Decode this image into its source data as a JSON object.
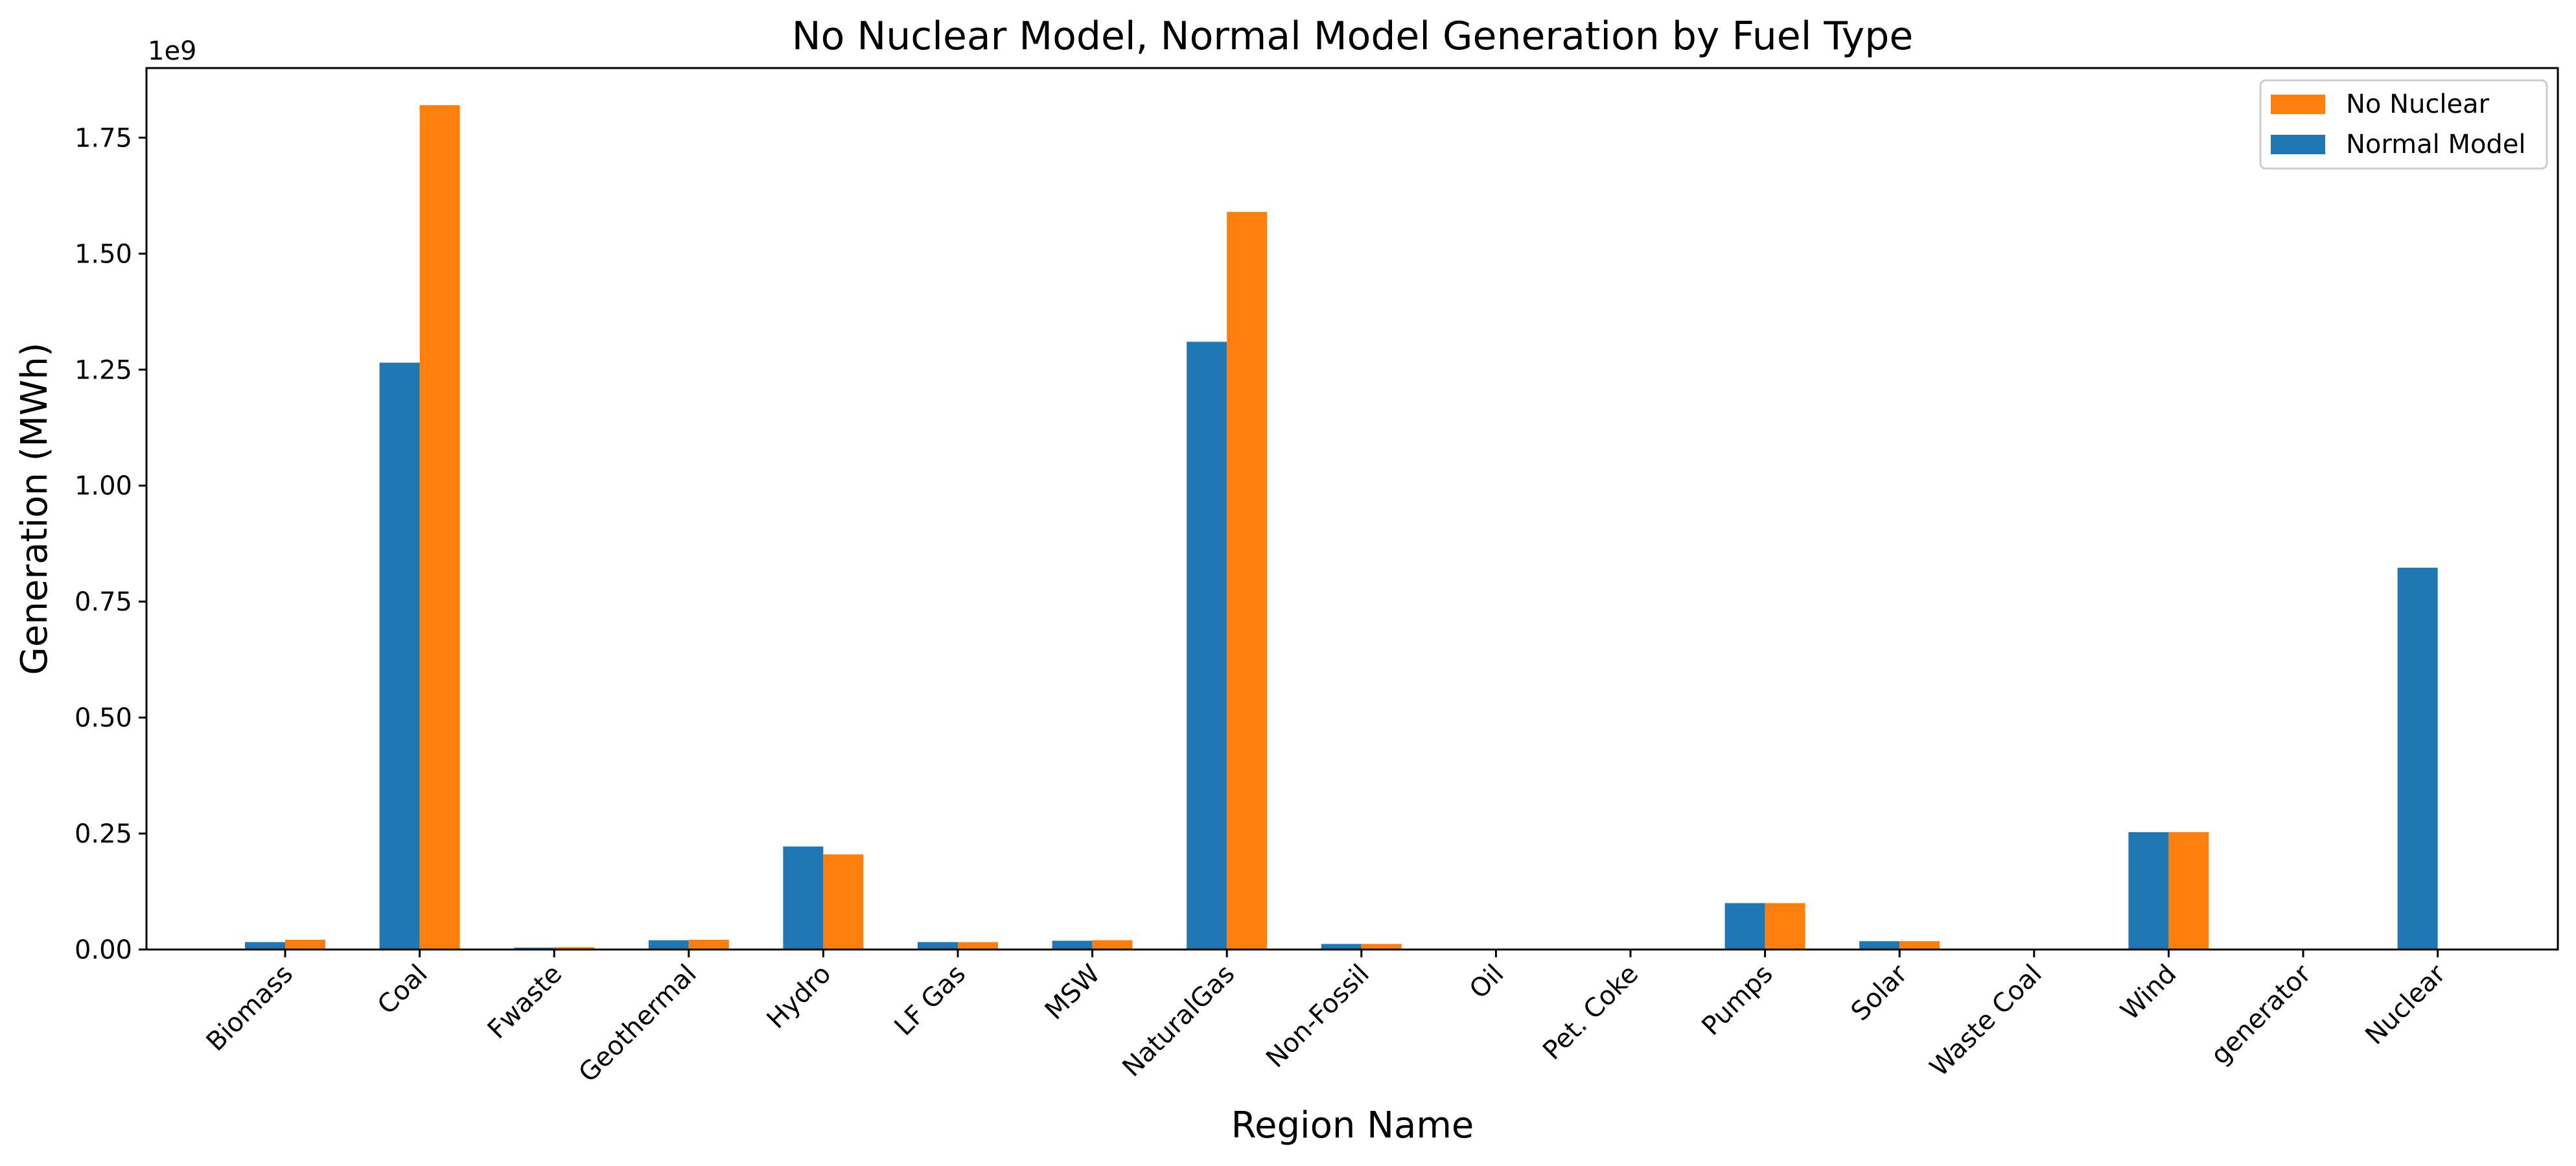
{
  "chart_data": {
    "type": "bar",
    "title": "No Nuclear Model, Normal Model Generation by Fuel Type",
    "xlabel": "Region Name",
    "ylabel": "Generation (MWh)",
    "y_exponent_label": "1e9",
    "ylim": [
      0,
      1.9
    ],
    "yticks": [
      "0.00",
      "0.25",
      "0.50",
      "0.75",
      "1.00",
      "1.25",
      "1.50",
      "1.75"
    ],
    "categories": [
      "Biomass",
      "Coal",
      "Fwaste",
      "Geothermal",
      "Hydro",
      "LF Gas",
      "MSW",
      "NaturalGas",
      "Non-Fossil",
      "Oil",
      "Pet. Coke",
      "Pumps",
      "Solar",
      "Waste Coal",
      "Wind",
      "generator",
      "Nuclear"
    ],
    "series": [
      {
        "name": "Normal Model",
        "color": "#1f77b4",
        "values": [
          0.016,
          1.265,
          0.004,
          0.02,
          0.222,
          0.016,
          0.019,
          1.31,
          0.012,
          0.0,
          0.0,
          0.1,
          0.018,
          0.0,
          0.253,
          0.0,
          0.823
        ]
      },
      {
        "name": "No Nuclear",
        "color": "#ff7f0e",
        "values": [
          0.021,
          1.82,
          0.005,
          0.021,
          0.205,
          0.016,
          0.02,
          1.59,
          0.012,
          0.0,
          0.0,
          0.1,
          0.018,
          0.0,
          0.253,
          0.0,
          0.0
        ]
      }
    ],
    "legend_order": [
      "No Nuclear",
      "Normal Model"
    ],
    "legend_position": "top-right",
    "grid": false
  }
}
